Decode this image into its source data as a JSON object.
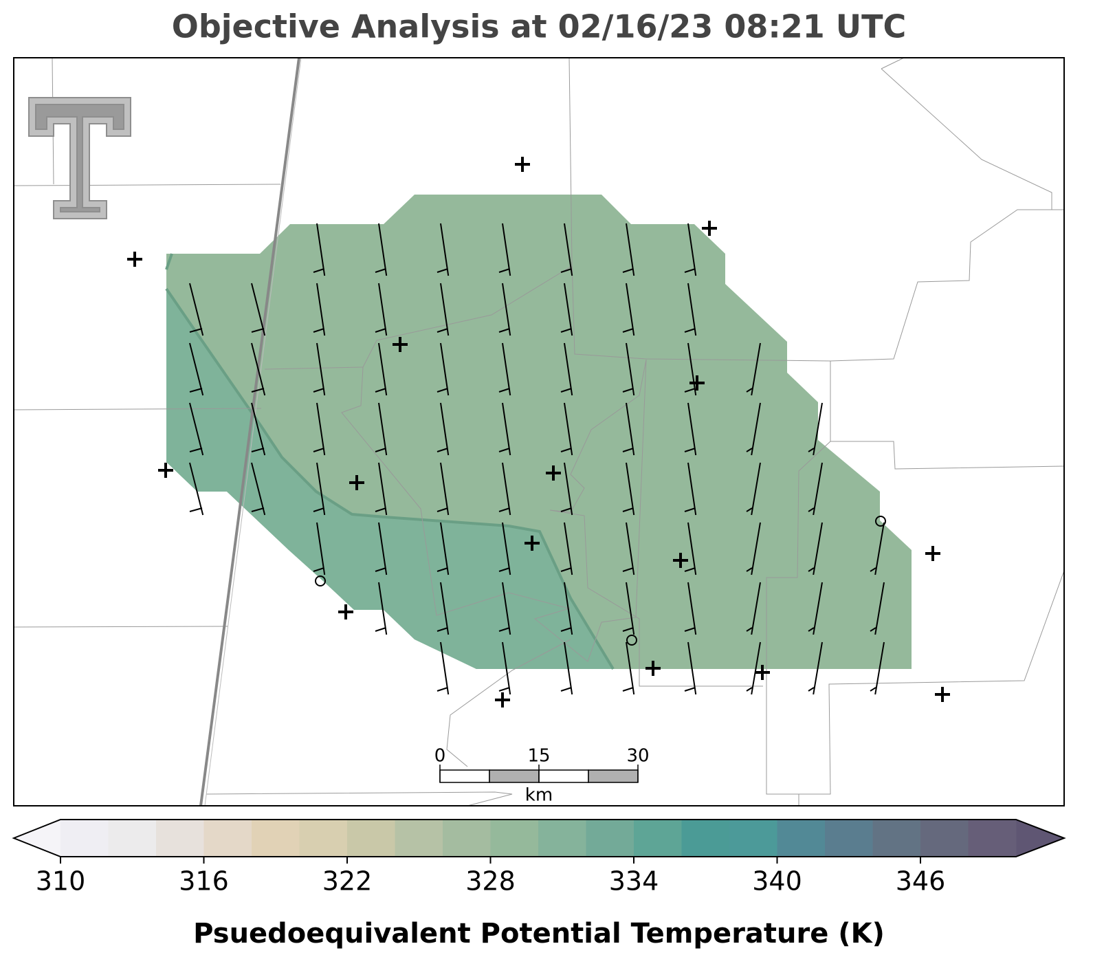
{
  "title": "Objective Analysis at 02/16/23 08:21 UTC",
  "colorbar": {
    "label": "Psuedoequivalent Potential Temperature (K)",
    "ticks": [
      310,
      316,
      322,
      328,
      334,
      340,
      346
    ],
    "levels": [
      310,
      312,
      314,
      316,
      318,
      320,
      322,
      324,
      326,
      328,
      330,
      332,
      334,
      336,
      338,
      340,
      342,
      344,
      346,
      348,
      350
    ],
    "colors": [
      "#efeef3",
      "#ecebec",
      "#e7e1dc",
      "#e4d8c8",
      "#e1d2b6",
      "#d8cfb0",
      "#c9c8a8",
      "#b6c2a6",
      "#a4bca0",
      "#95b99b",
      "#85b39b",
      "#73aa98",
      "#5ea596",
      "#4b9b96",
      "#4c9a99",
      "#528996",
      "#5a7d8f",
      "#627384",
      "#65697d",
      "#665e78"
    ],
    "under_color": "#f5f4f8",
    "over_color": "#5f5673"
  },
  "scale_bar": {
    "ticks": [
      0,
      15,
      30
    ],
    "unit": "km"
  }
}
